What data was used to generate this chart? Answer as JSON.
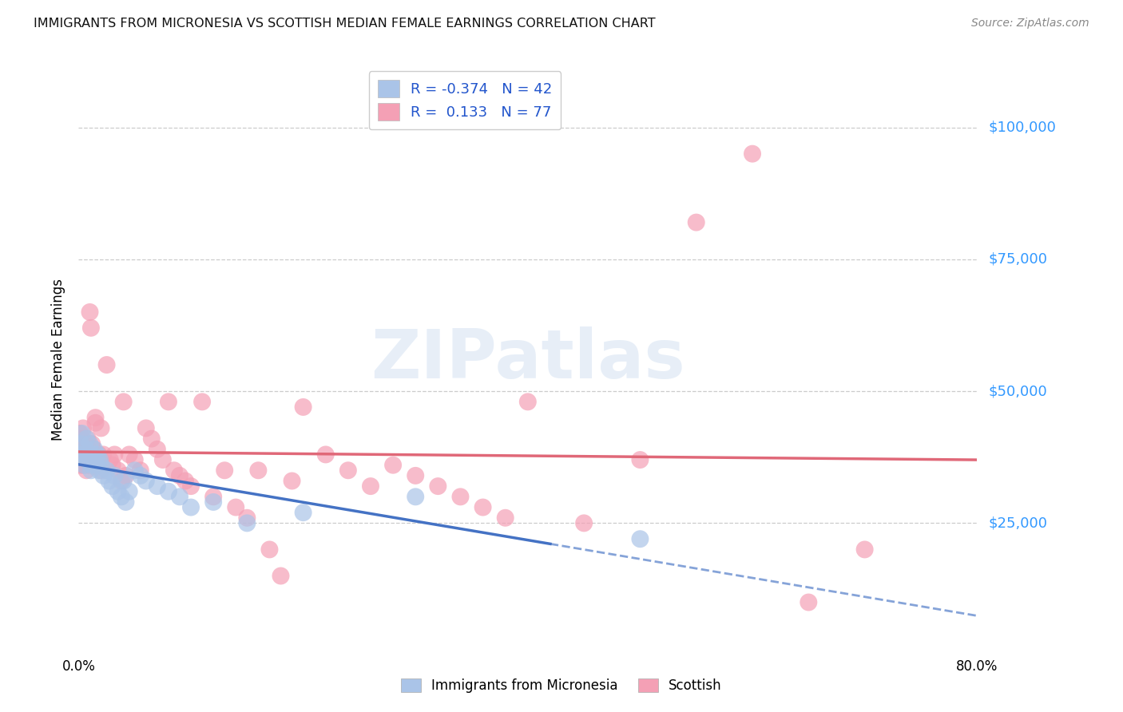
{
  "title": "IMMIGRANTS FROM MICRONESIA VS SCOTTISH MEDIAN FEMALE EARNINGS CORRELATION CHART",
  "source": "Source: ZipAtlas.com",
  "ylabel": "Median Female Earnings",
  "ytick_values": [
    25000,
    50000,
    75000,
    100000
  ],
  "ytick_labels": [
    "$25,000",
    "$50,000",
    "$75,000",
    "$100,000"
  ],
  "xtick_labels": [
    "0.0%",
    "80.0%"
  ],
  "ylim": [
    0,
    112000
  ],
  "xlim": [
    0.0,
    0.8
  ],
  "legend_blue_R": "-0.374",
  "legend_blue_N": "42",
  "legend_pink_R": "0.133",
  "legend_pink_N": "77",
  "watermark": "ZIPatlas",
  "blue_color": "#aac4e8",
  "pink_color": "#f4a0b5",
  "blue_line_color": "#4472c4",
  "pink_line_color": "#e06878",
  "axis_label_color": "#3399ff",
  "title_color": "#111111",
  "source_color": "#888888",
  "blue_scatter_x": [
    0.001,
    0.002,
    0.003,
    0.004,
    0.005,
    0.006,
    0.007,
    0.008,
    0.009,
    0.01,
    0.011,
    0.012,
    0.013,
    0.014,
    0.015,
    0.016,
    0.017,
    0.018,
    0.019,
    0.02,
    0.022,
    0.025,
    0.027,
    0.03,
    0.032,
    0.035,
    0.038,
    0.04,
    0.042,
    0.045,
    0.05,
    0.055,
    0.06,
    0.07,
    0.08,
    0.09,
    0.1,
    0.12,
    0.15,
    0.2,
    0.3,
    0.5
  ],
  "blue_scatter_y": [
    38000,
    40000,
    42000,
    38000,
    36000,
    39000,
    41000,
    37000,
    38000,
    40000,
    35000,
    36000,
    38000,
    39000,
    37000,
    36000,
    38000,
    35000,
    37000,
    36000,
    34000,
    35000,
    33000,
    32000,
    34000,
    31000,
    30000,
    33000,
    29000,
    31000,
    35000,
    34000,
    33000,
    32000,
    31000,
    30000,
    28000,
    29000,
    25000,
    27000,
    30000,
    22000
  ],
  "pink_scatter_x": [
    0.001,
    0.001,
    0.002,
    0.002,
    0.003,
    0.003,
    0.004,
    0.004,
    0.005,
    0.005,
    0.006,
    0.006,
    0.007,
    0.007,
    0.008,
    0.008,
    0.009,
    0.009,
    0.01,
    0.01,
    0.011,
    0.012,
    0.013,
    0.014,
    0.015,
    0.015,
    0.016,
    0.018,
    0.02,
    0.02,
    0.022,
    0.025,
    0.028,
    0.03,
    0.032,
    0.035,
    0.038,
    0.04,
    0.042,
    0.045,
    0.05,
    0.055,
    0.06,
    0.065,
    0.07,
    0.075,
    0.08,
    0.085,
    0.09,
    0.095,
    0.1,
    0.11,
    0.12,
    0.13,
    0.14,
    0.15,
    0.16,
    0.17,
    0.18,
    0.19,
    0.2,
    0.22,
    0.24,
    0.26,
    0.28,
    0.3,
    0.32,
    0.34,
    0.36,
    0.38,
    0.4,
    0.45,
    0.5,
    0.55,
    0.6,
    0.65,
    0.7
  ],
  "pink_scatter_y": [
    38000,
    42000,
    36000,
    40000,
    37000,
    41000,
    39000,
    43000,
    38000,
    36000,
    40000,
    37000,
    39000,
    35000,
    38000,
    41000,
    36000,
    39000,
    65000,
    37000,
    62000,
    40000,
    39000,
    38000,
    44000,
    45000,
    36000,
    38000,
    43000,
    35000,
    38000,
    55000,
    37000,
    36000,
    38000,
    35000,
    33000,
    48000,
    34000,
    38000,
    37000,
    35000,
    43000,
    41000,
    39000,
    37000,
    48000,
    35000,
    34000,
    33000,
    32000,
    48000,
    30000,
    35000,
    28000,
    26000,
    35000,
    20000,
    15000,
    33000,
    47000,
    38000,
    35000,
    32000,
    36000,
    34000,
    32000,
    30000,
    28000,
    26000,
    48000,
    25000,
    37000,
    82000,
    95000,
    10000,
    20000
  ]
}
